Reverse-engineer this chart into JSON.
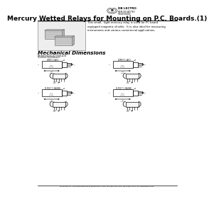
{
  "bg_color": "#ffffff",
  "title": "Mercury Wetted Relays for Mounting on P.C. Boards.(1)",
  "company": "DB LECTRO",
  "footer": "DB LECTRO Inc.  2000 East Norths anta | Broward Rp. AY-333  tel:1(561)-444-1434  fax:1(580)-444-4718  www.dblectro.com",
  "description": "This small,  light mercury relay is used for PC board\nequipped magnetic shields.  It is also ideal for measuring\ninstruments and various commercial applications.",
  "mech_title": "Mechanical Dimensions",
  "mech_sub1": "All dimensions are measured",
  "mech_sub2": "in inches (millimeters).",
  "label_tl": "SPDT 1 (A/C)",
  "label_tr": "D/PDT 1 (A/C)",
  "label_bl": "D.P.D.T 1 (A1/B2)",
  "label_br": "D.P.D.T 1 (A1/B2)",
  "title_fontsize": 6.5,
  "body_fontsize": 3.0
}
